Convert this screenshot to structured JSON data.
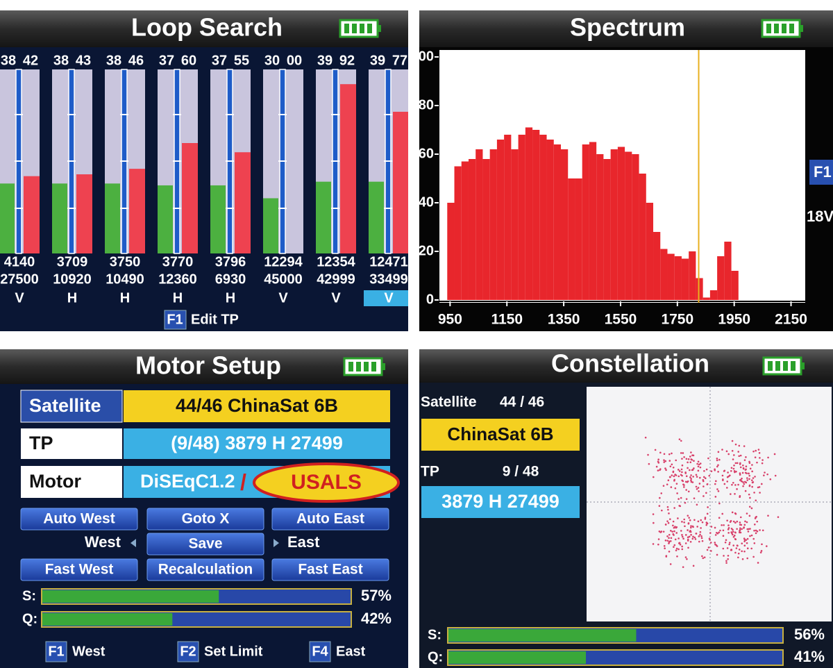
{
  "loop_search": {
    "title": "Loop Search",
    "ylim": [
      0,
      100
    ],
    "channels": [
      {
        "level": 38,
        "quality": 42,
        "frequency": 4140,
        "symbol_rate": 27500,
        "polarization": "V"
      },
      {
        "level": 38,
        "quality": 43,
        "frequency": 3709,
        "symbol_rate": 10920,
        "polarization": "H"
      },
      {
        "level": 38,
        "quality": 46,
        "frequency": 3750,
        "symbol_rate": 10490,
        "polarization": "H"
      },
      {
        "level": 37,
        "quality": 60,
        "frequency": 3770,
        "symbol_rate": 12360,
        "polarization": "H"
      },
      {
        "level": 37,
        "quality": 55,
        "frequency": 3796,
        "symbol_rate": 6930,
        "polarization": "H"
      },
      {
        "level": 30,
        "quality": 0,
        "quality_label": "00",
        "frequency": 12294,
        "symbol_rate": 45000,
        "polarization": "V"
      },
      {
        "level": 39,
        "quality": 92,
        "frequency": 12354,
        "symbol_rate": 42999,
        "polarization": "V"
      },
      {
        "level": 39,
        "quality": 77,
        "frequency": 12471,
        "symbol_rate": 33499,
        "polarization": "V",
        "selected": true
      }
    ],
    "footer_key": "F1",
    "footer_label": "Edit TP"
  },
  "spectrum": {
    "title": "Spectrum",
    "type": "histogram",
    "color": "#e8262c",
    "bins": [
      940,
      965,
      990,
      1015,
      1040,
      1065,
      1090,
      1115,
      1140,
      1165,
      1190,
      1215,
      1240,
      1265,
      1290,
      1315,
      1340,
      1365,
      1390,
      1415,
      1440,
      1465,
      1490,
      1515,
      1540,
      1565,
      1590,
      1615,
      1640,
      1665,
      1690,
      1715,
      1740,
      1765,
      1790,
      1815,
      1840,
      1865,
      1890,
      1915,
      1940,
      1965
    ],
    "values": [
      40,
      55,
      57,
      58,
      62,
      58,
      62,
      66,
      68,
      62,
      68,
      71,
      70,
      68,
      66,
      64,
      62,
      50,
      50,
      64,
      65,
      60,
      58,
      62,
      63,
      61,
      60,
      52,
      40,
      28,
      21,
      19,
      18,
      17,
      20,
      9,
      1,
      4,
      18,
      24,
      12
    ],
    "xlim": [
      910,
      2200
    ],
    "ylim": [
      0,
      100
    ],
    "xticks": [
      950,
      1150,
      1350,
      1550,
      1750,
      1950,
      2150
    ],
    "yticks": [
      0,
      20,
      40,
      60,
      80,
      100
    ],
    "marker": 1825,
    "marker_color": "#e8b020",
    "side_key": "F1",
    "side_label": "18V"
  },
  "motor_setup": {
    "title": "Motor Setup",
    "satellite_label": "Satellite",
    "satellite": "44/46 ChinaSat 6B",
    "tp_label": "TP",
    "tp": "(9/48) 3879 H 27499",
    "motor_label": "Motor",
    "motor": "DiSEqC1.2",
    "separator": "/",
    "usals": "USALS",
    "buttons": [
      "Auto West",
      "Goto X",
      "Auto East",
      "Save",
      "Fast West",
      "Recalculation",
      "Fast East"
    ],
    "west": "West",
    "east": "East",
    "xlim": [
      0,
      100
    ],
    "signals": [
      {
        "name": "S:",
        "value": 57,
        "value_label": "57%"
      },
      {
        "name": "Q:",
        "value": 42,
        "value_label": "42%"
      }
    ],
    "keys": [
      {
        "key": "F1",
        "label": "West"
      },
      {
        "key": "F2",
        "label": "Set Limit"
      },
      {
        "key": "F4",
        "label": "East"
      }
    ]
  },
  "constellation": {
    "title": "Constellation",
    "satellite_label": "Satellite",
    "satellite": "44 / 46",
    "satellite_name": "ChinaSat 6B",
    "tp_label": "TP",
    "tp": "9 / 48",
    "tp_value": "3879 H 27499",
    "xlim": [
      0,
      100
    ],
    "signals": [
      {
        "name": "S:",
        "value": 56,
        "value_label": "56%"
      },
      {
        "name": "Q:",
        "value": 41,
        "value_label": "41%"
      }
    ]
  }
}
